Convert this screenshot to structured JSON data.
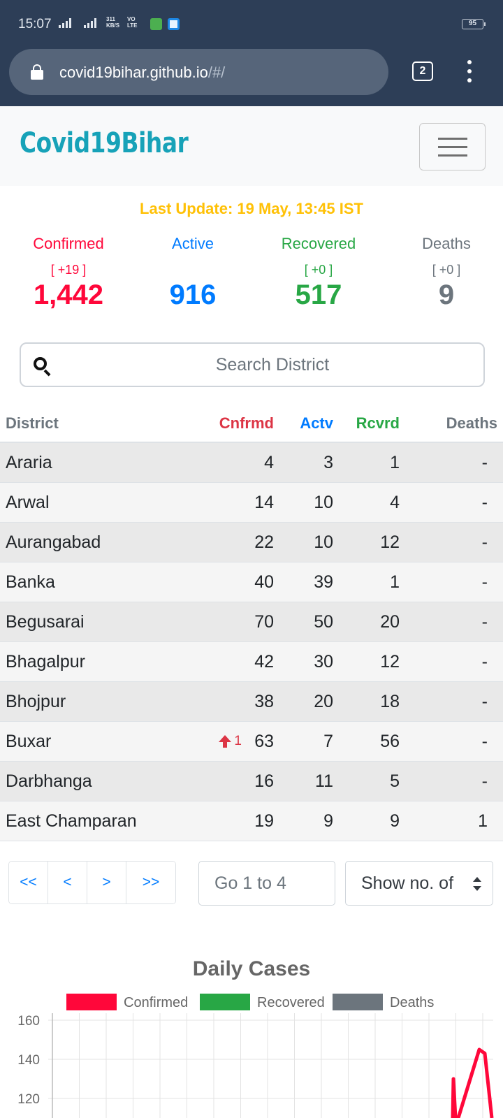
{
  "status_bar": {
    "time": "15:07",
    "net_speed_top": "311",
    "net_speed_bottom": "KB/S",
    "volte_top": "VO",
    "volte_bottom": "LTE",
    "battery": "95"
  },
  "browser": {
    "url_host": "covid19bihar.github.io",
    "url_path": "/#/",
    "tab_count": "2"
  },
  "navbar": {
    "brand": "Covid19Bihar"
  },
  "last_update": "Last Update: 19 May, 13:45 IST",
  "colors": {
    "confirmed": "#ff073a",
    "active": "#007bff",
    "recovered": "#28a745",
    "deaths": "#6c757d",
    "update": "#ffc107",
    "brand": "#17a2b8"
  },
  "stats": {
    "confirmed": {
      "label": "Confirmed",
      "delta": "[ +19 ]",
      "value": "1,442"
    },
    "active": {
      "label": "Active",
      "delta": "",
      "value": "916"
    },
    "recovered": {
      "label": "Recovered",
      "delta": "[ +0 ]",
      "value": "517"
    },
    "deaths": {
      "label": "Deaths",
      "delta": "[ +0 ]",
      "value": "9"
    }
  },
  "search": {
    "placeholder": "Search District"
  },
  "table": {
    "headers": {
      "district": "District",
      "confirmed": "Cnfrmd",
      "active": "Actv",
      "recovered": "Rcvrd",
      "deaths": "Deaths"
    },
    "rows": [
      {
        "district": "Araria",
        "confirmed": "4",
        "active": "3",
        "recovered": "1",
        "deaths": "-",
        "delta": ""
      },
      {
        "district": "Arwal",
        "confirmed": "14",
        "active": "10",
        "recovered": "4",
        "deaths": "-",
        "delta": ""
      },
      {
        "district": "Aurangabad",
        "confirmed": "22",
        "active": "10",
        "recovered": "12",
        "deaths": "-",
        "delta": ""
      },
      {
        "district": "Banka",
        "confirmed": "40",
        "active": "39",
        "recovered": "1",
        "deaths": "-",
        "delta": ""
      },
      {
        "district": "Begusarai",
        "confirmed": "70",
        "active": "50",
        "recovered": "20",
        "deaths": "-",
        "delta": ""
      },
      {
        "district": "Bhagalpur",
        "confirmed": "42",
        "active": "30",
        "recovered": "12",
        "deaths": "-",
        "delta": ""
      },
      {
        "district": "Bhojpur",
        "confirmed": "38",
        "active": "20",
        "recovered": "18",
        "deaths": "-",
        "delta": ""
      },
      {
        "district": "Buxar",
        "confirmed": "63",
        "active": "7",
        "recovered": "56",
        "deaths": "-",
        "delta": "1"
      },
      {
        "district": "Darbhanga",
        "confirmed": "16",
        "active": "11",
        "recovered": "5",
        "deaths": "-",
        "delta": ""
      },
      {
        "district": "East Champaran",
        "confirmed": "19",
        "active": "9",
        "recovered": "9",
        "deaths": "1",
        "delta": ""
      }
    ]
  },
  "pagination": {
    "first": "<<",
    "prev": "<",
    "next": ">",
    "last": ">>",
    "goto_placeholder": "Go 1 to 4",
    "show_selected": "Show no. of"
  },
  "chart_data": {
    "type": "line",
    "title": "Daily Cases",
    "legend": [
      "Confirmed",
      "Recovered",
      "Deaths"
    ],
    "legend_position": "top",
    "grid": true,
    "y_ticks": [
      160,
      140,
      120
    ],
    "series": [
      {
        "name": "Confirmed",
        "color": "#ff073a",
        "values": [
          130,
          118,
          145,
          143,
          118
        ]
      },
      {
        "name": "Recovered",
        "color": "#28a745",
        "values": []
      },
      {
        "name": "Deaths",
        "color": "#6c757d",
        "values": []
      }
    ]
  }
}
